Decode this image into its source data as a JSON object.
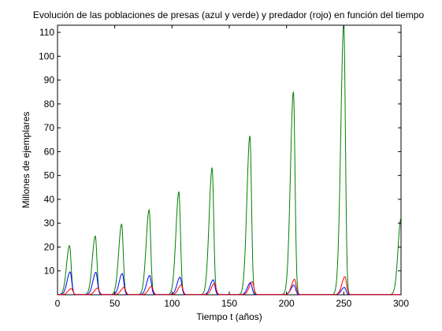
{
  "chart_data": {
    "type": "line",
    "title": "Evolución de las poblaciones de presas (azul y verde) y predador (rojo) en función del tiempo",
    "xlabel": "Tiempo t (años)",
    "ylabel": "Millones de ejemplares",
    "xlim": [
      0,
      300
    ],
    "ylim": [
      0,
      113
    ],
    "xticks": [
      0,
      50,
      100,
      150,
      200,
      250,
      300
    ],
    "yticks": [
      10,
      20,
      30,
      40,
      50,
      60,
      70,
      80,
      90,
      100,
      110
    ],
    "grid": false,
    "colors": {
      "green": "#008000",
      "blue": "#0000ff",
      "red": "#ff0000",
      "axes": "#000000"
    },
    "series": [
      {
        "color": "green",
        "peaks": [
          [
            10.5,
            20.5
          ],
          [
            33,
            24.5
          ],
          [
            56,
            29.5
          ],
          [
            80,
            35.5
          ],
          [
            106,
            43
          ],
          [
            135,
            53
          ],
          [
            168,
            66.5
          ],
          [
            206,
            85
          ],
          [
            250,
            113
          ],
          [
            300,
            32
          ]
        ]
      },
      {
        "color": "blue",
        "peaks": [
          [
            11,
            9.5
          ],
          [
            33.5,
            9.3
          ],
          [
            56.5,
            8.8
          ],
          [
            80.5,
            8
          ],
          [
            107,
            7.3
          ],
          [
            136,
            6.2
          ],
          [
            168.5,
            5
          ],
          [
            206.5,
            4
          ],
          [
            250.5,
            3
          ]
        ]
      },
      {
        "color": "red",
        "peaks": [
          [
            12,
            2.5
          ],
          [
            35,
            2.7
          ],
          [
            58,
            3
          ],
          [
            82,
            3.4
          ],
          [
            108,
            4
          ],
          [
            137,
            4.6
          ],
          [
            170,
            5.4
          ],
          [
            207,
            6.4
          ],
          [
            251,
            7.5
          ]
        ]
      }
    ]
  }
}
